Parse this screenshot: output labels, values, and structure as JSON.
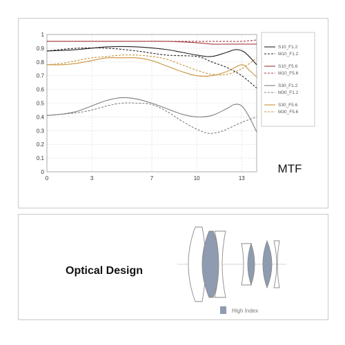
{
  "mtf_panel": {
    "title": "MTF",
    "chart_data": {
      "type": "line",
      "title": "MTF",
      "xlabel": "",
      "ylabel": "",
      "xlim": [
        0,
        14
      ],
      "ylim": [
        0,
        1
      ],
      "x_ticks": [
        "0",
        "3",
        "7",
        "10",
        "13"
      ],
      "y_ticks": [
        "0",
        "0.1",
        "0.2",
        "0.3",
        "0.4",
        "0.5",
        "0.6",
        "0.7",
        "0.8",
        "0.9",
        "1"
      ],
      "grid": true,
      "legend_position": "right",
      "series": [
        {
          "name": "S10_F1.2",
          "color": "#222222",
          "dash": "solid",
          "x": [
            0,
            2,
            4,
            6,
            8,
            10,
            11,
            12,
            12.6,
            13.2,
            14
          ],
          "y": [
            0.88,
            0.89,
            0.91,
            0.91,
            0.89,
            0.85,
            0.84,
            0.87,
            0.89,
            0.87,
            0.78
          ]
        },
        {
          "name": "M10_F1.2",
          "color": "#222222",
          "dash": "dashed",
          "x": [
            0,
            2,
            4,
            6,
            8,
            10,
            11,
            12,
            13,
            14
          ],
          "y": [
            0.88,
            0.9,
            0.9,
            0.88,
            0.85,
            0.84,
            0.8,
            0.76,
            0.7,
            0.61
          ]
        },
        {
          "name": "S10_F5.6",
          "color": "#a3373d",
          "dash": "solid",
          "x": [
            0,
            2,
            4,
            6,
            8,
            10,
            11,
            12,
            13,
            14
          ],
          "y": [
            0.95,
            0.95,
            0.95,
            0.95,
            0.95,
            0.94,
            0.93,
            0.93,
            0.93,
            0.93
          ]
        },
        {
          "name": "M10_F5.6",
          "color": "#a3373d",
          "dash": "dashed",
          "x": [
            0,
            2,
            4,
            6,
            8,
            10,
            11,
            12,
            13,
            14
          ],
          "y": [
            0.95,
            0.95,
            0.95,
            0.95,
            0.95,
            0.95,
            0.95,
            0.95,
            0.95,
            0.96
          ]
        },
        {
          "name": "S30_F1.2",
          "color": "#7d7d7d",
          "dash": "solid",
          "x": [
            0,
            1,
            2,
            3,
            4,
            5,
            6,
            7,
            8,
            9,
            10,
            11,
            12,
            12.5,
            13,
            13.5,
            14
          ],
          "y": [
            0.41,
            0.42,
            0.44,
            0.48,
            0.52,
            0.54,
            0.53,
            0.5,
            0.46,
            0.42,
            0.4,
            0.41,
            0.46,
            0.49,
            0.48,
            0.4,
            0.29
          ]
        },
        {
          "name": "M30_F1.2",
          "color": "#7d7d7d",
          "dash": "dashed",
          "x": [
            0,
            1,
            2,
            3,
            4,
            5,
            6,
            7,
            8,
            9,
            10,
            10.8,
            11.5,
            12,
            13,
            14
          ],
          "y": [
            0.41,
            0.42,
            0.43,
            0.45,
            0.48,
            0.5,
            0.5,
            0.49,
            0.44,
            0.37,
            0.31,
            0.28,
            0.29,
            0.31,
            0.36,
            0.4
          ]
        },
        {
          "name": "S30_F5.6",
          "color": "#c9923a",
          "dash": "solid",
          "x": [
            0,
            1,
            2,
            3,
            4,
            5,
            6,
            7,
            8,
            9,
            10,
            11,
            12,
            13,
            13.5,
            14
          ],
          "y": [
            0.78,
            0.78,
            0.79,
            0.81,
            0.83,
            0.83,
            0.83,
            0.81,
            0.77,
            0.73,
            0.7,
            0.7,
            0.73,
            0.78,
            0.74,
            0.69
          ]
        },
        {
          "name": "M30_F5.6",
          "color": "#c9923a",
          "dash": "dashed",
          "x": [
            0,
            1,
            2,
            3,
            4,
            5,
            6,
            7,
            8,
            9,
            10,
            11,
            12,
            13,
            14
          ],
          "y": [
            0.78,
            0.79,
            0.81,
            0.83,
            0.84,
            0.85,
            0.85,
            0.84,
            0.82,
            0.78,
            0.74,
            0.71,
            0.71,
            0.75,
            0.83
          ]
        }
      ]
    }
  },
  "optics_panel": {
    "title": "Optical Design",
    "legend_label": "High Index",
    "high_index_color": "#8e9bb0"
  }
}
